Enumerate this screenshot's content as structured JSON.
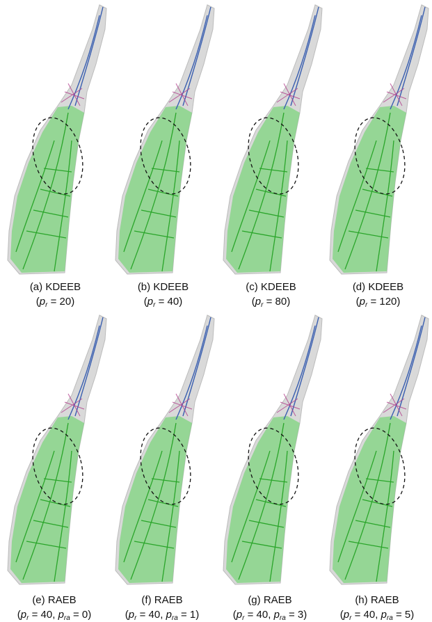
{
  "panels": [
    {
      "label": "(a) KDEEB",
      "params": [
        {
          "text": "("
        },
        {
          "text": "p",
          "style": "italic"
        },
        {
          "text": "r",
          "style": "sub"
        },
        {
          "text": " = 20)"
        }
      ]
    },
    {
      "label": "(b) KDEEB",
      "params": [
        {
          "text": "("
        },
        {
          "text": "p",
          "style": "italic"
        },
        {
          "text": "r",
          "style": "sub"
        },
        {
          "text": " = 40)"
        }
      ]
    },
    {
      "label": "(c) KDEEB",
      "params": [
        {
          "text": "("
        },
        {
          "text": "p",
          "style": "italic"
        },
        {
          "text": "r",
          "style": "sub"
        },
        {
          "text": " = 80)"
        }
      ]
    },
    {
      "label": "(d) KDEEB",
      "params": [
        {
          "text": "("
        },
        {
          "text": "p",
          "style": "italic"
        },
        {
          "text": "r",
          "style": "sub"
        },
        {
          "text": " = 120)"
        }
      ]
    },
    {
      "label": "(e) RAEB",
      "params": [
        {
          "text": "("
        },
        {
          "text": "p",
          "style": "italic"
        },
        {
          "text": "r",
          "style": "sub"
        },
        {
          "text": " = 40, "
        },
        {
          "text": "p",
          "style": "italic"
        },
        {
          "text": "ra",
          "style": "sub"
        },
        {
          "text": " = 0)"
        }
      ]
    },
    {
      "label": "(f) RAEB",
      "params": [
        {
          "text": "("
        },
        {
          "text": "p",
          "style": "italic"
        },
        {
          "text": "r",
          "style": "sub"
        },
        {
          "text": " = 40, "
        },
        {
          "text": "p",
          "style": "italic"
        },
        {
          "text": "ra",
          "style": "sub"
        },
        {
          "text": " = 1)"
        }
      ]
    },
    {
      "label": "(g) RAEB",
      "params": [
        {
          "text": "("
        },
        {
          "text": "p",
          "style": "italic"
        },
        {
          "text": "r",
          "style": "sub"
        },
        {
          "text": " = 40, "
        },
        {
          "text": "p",
          "style": "italic"
        },
        {
          "text": "ra",
          "style": "sub"
        },
        {
          "text": " = 3)"
        }
      ]
    },
    {
      "label": "(h) RAEB",
      "params": [
        {
          "text": "("
        },
        {
          "text": "p",
          "style": "italic"
        },
        {
          "text": "r",
          "style": "sub"
        },
        {
          "text": " = 40, "
        },
        {
          "text": "p",
          "style": "italic"
        },
        {
          "text": "ra",
          "style": "sub"
        },
        {
          "text": " = 5)"
        }
      ]
    }
  ]
}
